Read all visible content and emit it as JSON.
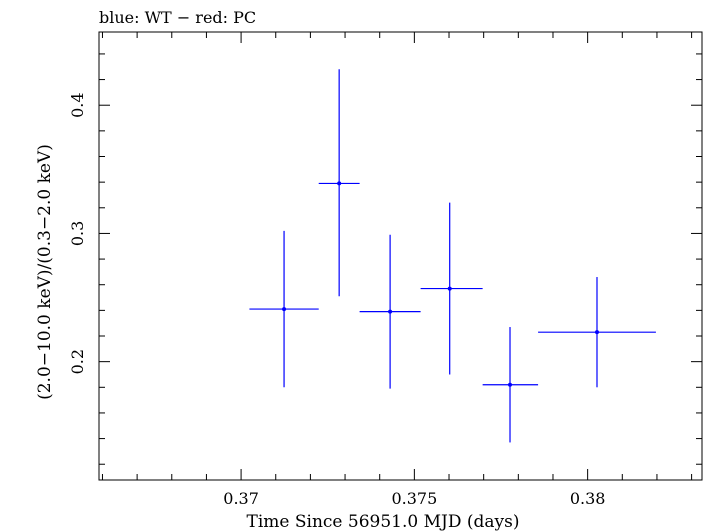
{
  "chart_data": {
    "type": "scatter",
    "title": "blue: WT − red: PC",
    "xlabel": "Time Since 56951.0 MJD (days)",
    "ylabel": "(2.0−10.0 keV)/(0.3−2.0 keV)",
    "xlim": [
      0.3659,
      0.3833
    ],
    "ylim": [
      0.1077,
      0.4571
    ],
    "x_ticks": [
      {
        "value": 0.37,
        "label": "0.37"
      },
      {
        "value": 0.375,
        "label": "0.375"
      },
      {
        "value": 0.38,
        "label": "0.38"
      }
    ],
    "y_ticks": [
      {
        "value": 0.2,
        "label": "0.2"
      },
      {
        "value": 0.3,
        "label": "0.3"
      },
      {
        "value": 0.4,
        "label": "0.4"
      }
    ],
    "grid": false,
    "series": [
      {
        "color": "#0000ff",
        "points": [
          {
            "x": 0.37124,
            "x_lo": 0.37024,
            "x_hi": 0.37224,
            "y": 0.241,
            "y_lo": 0.18,
            "y_hi": 0.302
          },
          {
            "x": 0.37283,
            "x_lo": 0.37224,
            "x_hi": 0.37342,
            "y": 0.339,
            "y_lo": 0.251,
            "y_hi": 0.428
          },
          {
            "x": 0.3743,
            "x_lo": 0.37342,
            "x_hi": 0.37518,
            "y": 0.239,
            "y_lo": 0.179,
            "y_hi": 0.299
          },
          {
            "x": 0.37602,
            "x_lo": 0.37518,
            "x_hi": 0.37697,
            "y": 0.257,
            "y_lo": 0.19,
            "y_hi": 0.324
          },
          {
            "x": 0.37776,
            "x_lo": 0.37697,
            "x_hi": 0.37857,
            "y": 0.182,
            "y_lo": 0.137,
            "y_hi": 0.227
          },
          {
            "x": 0.38027,
            "x_lo": 0.37857,
            "x_hi": 0.38197,
            "y": 0.223,
            "y_lo": 0.18,
            "y_hi": 0.266
          }
        ]
      }
    ]
  }
}
